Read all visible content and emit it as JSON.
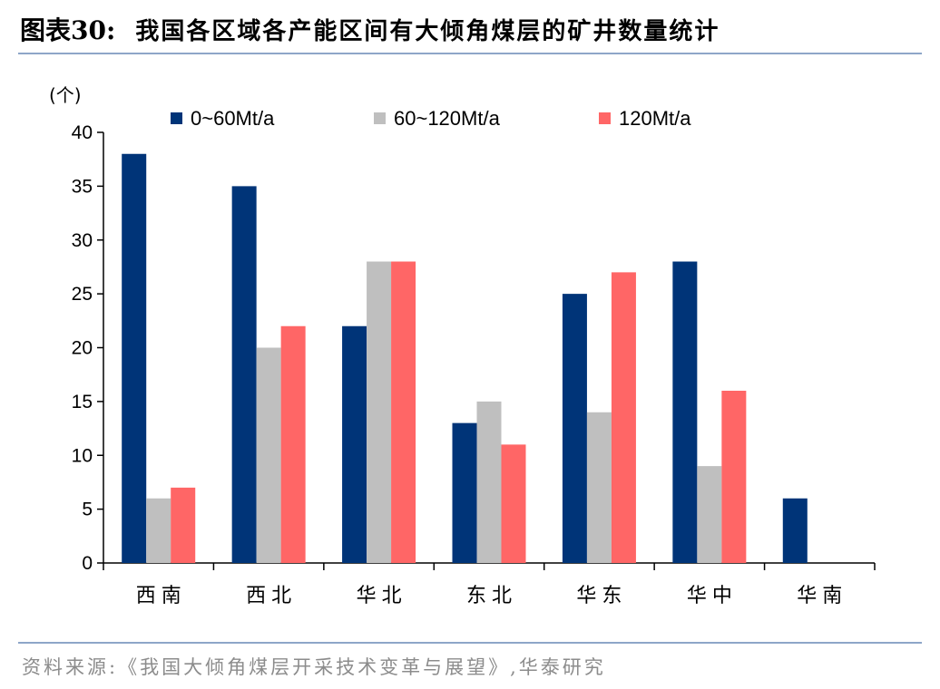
{
  "header": {
    "figure_label": "图表30:",
    "title": "我国各区域各产能区间有大倾角煤层的矿井数量统计"
  },
  "source": "资料来源:《我国大倾角煤层开采技术变革与展望》,华泰研究",
  "chart_data": {
    "type": "bar",
    "title": "我国各区域各产能区间有大倾角煤层的矿井数量统计",
    "ylabel": "(个)",
    "xlabel": "",
    "ylim": [
      0,
      40
    ],
    "yticks": [
      0,
      5,
      10,
      15,
      20,
      25,
      30,
      35,
      40
    ],
    "grid": false,
    "legend_position": "top",
    "categories": [
      "西南",
      "西北",
      "华北",
      "东北",
      "华东",
      "华中",
      "华南"
    ],
    "series": [
      {
        "name": "0~60Mt/a",
        "color": "#003478",
        "values": [
          38,
          35,
          22,
          13,
          25,
          28,
          6
        ]
      },
      {
        "name": "60~120Mt/a",
        "color": "#bfbfbf",
        "values": [
          6,
          20,
          28,
          15,
          14,
          9,
          0
        ]
      },
      {
        "name": "120Mt/a",
        "color": "#ff6666",
        "values": [
          7,
          22,
          28,
          11,
          27,
          16,
          0
        ]
      }
    ]
  }
}
